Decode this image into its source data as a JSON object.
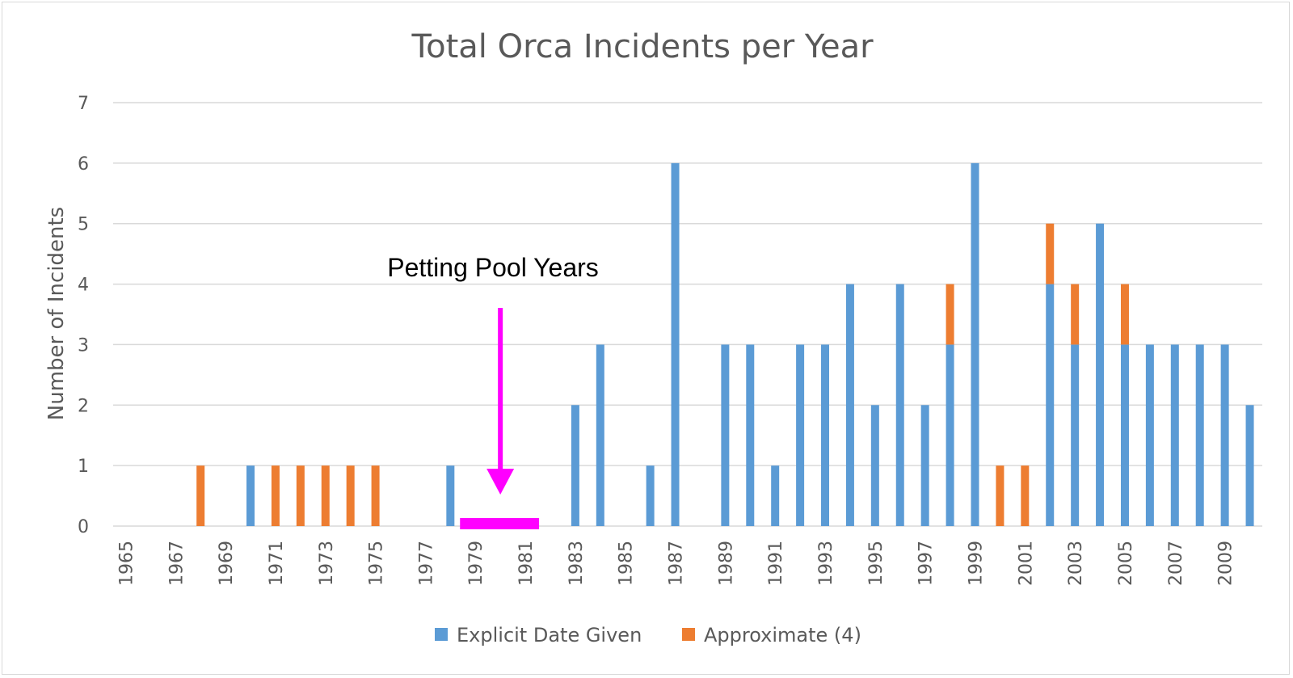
{
  "chart_data": {
    "type": "bar",
    "stacked": true,
    "title": "Total Orca Incidents per Year",
    "ylabel": "Number of Incidents",
    "xlabel": "",
    "ylim": [
      0,
      7
    ],
    "yticks": [
      0,
      1,
      2,
      3,
      4,
      5,
      6,
      7
    ],
    "grid": true,
    "legend_position": "bottom",
    "categories": [
      1965,
      1966,
      1967,
      1968,
      1969,
      1970,
      1971,
      1972,
      1973,
      1974,
      1975,
      1976,
      1977,
      1978,
      1979,
      1980,
      1981,
      1982,
      1983,
      1984,
      1985,
      1986,
      1987,
      1988,
      1989,
      1990,
      1991,
      1992,
      1993,
      1994,
      1995,
      1996,
      1997,
      1998,
      1999,
      2000,
      2001,
      2002,
      2003,
      2004,
      2005,
      2006,
      2007,
      2008,
      2009,
      2010
    ],
    "xtick_labels": [
      "1965",
      "1967",
      "1969",
      "1971",
      "1973",
      "1975",
      "1977",
      "1979",
      "1981",
      "1983",
      "1985",
      "1987",
      "1989",
      "1991",
      "1993",
      "1995",
      "1997",
      "1999",
      "2001",
      "2003",
      "2005",
      "2007",
      "2009"
    ],
    "series": [
      {
        "name": "Explicit Date Given",
        "color": "#5b9bd5",
        "values": [
          0,
          0,
          0,
          0,
          0,
          1,
          0,
          0,
          0,
          0,
          0,
          0,
          0,
          1,
          0,
          0,
          0,
          0,
          2,
          3,
          0,
          1,
          6,
          0,
          3,
          3,
          1,
          3,
          3,
          4,
          2,
          4,
          2,
          3,
          6,
          0,
          0,
          4,
          3,
          5,
          3,
          3,
          3,
          3,
          3,
          2
        ]
      },
      {
        "name": "Approximate (4)",
        "color": "#ed7d31",
        "values": [
          0,
          0,
          0,
          1,
          0,
          0,
          1,
          1,
          1,
          1,
          1,
          0,
          0,
          0,
          0,
          0,
          0,
          0,
          0,
          0,
          0,
          0,
          0,
          0,
          0,
          0,
          0,
          0,
          0,
          0,
          0,
          0,
          0,
          1,
          0,
          1,
          1,
          1,
          1,
          0,
          1,
          0,
          0,
          0,
          0,
          0
        ]
      }
    ],
    "annotations": [
      {
        "text": "Petting Pool Years",
        "color": "#ff00ff",
        "range_years": [
          1979,
          1981
        ],
        "arrow_target_year": 1980
      }
    ]
  }
}
